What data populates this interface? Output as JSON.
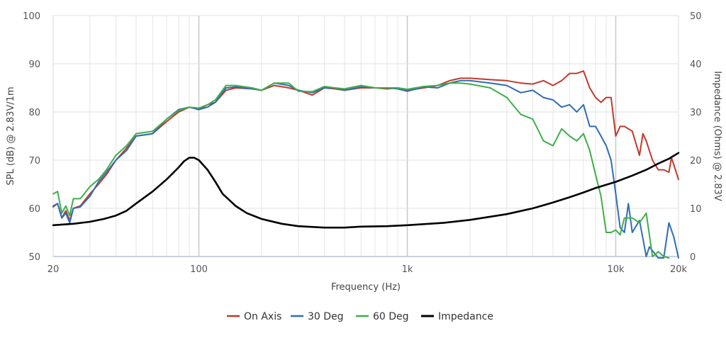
{
  "chart_data": {
    "type": "line",
    "title": "",
    "xlabel": "Frequency (Hz)",
    "ylabel": "SPL (dB) @ 2.83V/1m",
    "y2label": "Impedance (Ohms) @ 2.83V",
    "x_scale": "log",
    "xlim": [
      20,
      20000
    ],
    "ylim": [
      50,
      100
    ],
    "y2lim": [
      0,
      50
    ],
    "x_ticks": [
      {
        "value": 20,
        "label": "20"
      },
      {
        "value": 100,
        "label": "100"
      },
      {
        "value": 1000,
        "label": "1k"
      },
      {
        "value": 10000,
        "label": "10k"
      },
      {
        "value": 20000,
        "label": "20k"
      }
    ],
    "y_ticks": [
      {
        "value": 50,
        "label": "50"
      },
      {
        "value": 60,
        "label": "60"
      },
      {
        "value": 70,
        "label": "70"
      },
      {
        "value": 80,
        "label": "80"
      },
      {
        "value": 90,
        "label": "90"
      },
      {
        "value": 100,
        "label": "100"
      }
    ],
    "y2_ticks": [
      {
        "value": 0,
        "label": "0"
      },
      {
        "value": 10,
        "label": "10"
      },
      {
        "value": 20,
        "label": "20"
      },
      {
        "value": 30,
        "label": "30"
      },
      {
        "value": 40,
        "label": "40"
      },
      {
        "value": 50,
        "label": "50"
      }
    ],
    "grid": true,
    "legend_position": "bottom",
    "series": [
      {
        "name": "On Axis",
        "color": "#c0392b",
        "axis": "left",
        "points": [
          [
            20,
            60.3
          ],
          [
            21,
            61
          ],
          [
            22,
            58
          ],
          [
            23,
            59.5
          ],
          [
            24,
            57.5
          ],
          [
            25,
            60
          ],
          [
            27,
            60.5
          ],
          [
            30,
            63
          ],
          [
            33,
            65
          ],
          [
            36,
            67
          ],
          [
            40,
            70
          ],
          [
            45,
            72.5
          ],
          [
            50,
            75
          ],
          [
            60,
            75.5
          ],
          [
            70,
            78
          ],
          [
            80,
            80
          ],
          [
            90,
            81
          ],
          [
            100,
            80.5
          ],
          [
            110,
            81.5
          ],
          [
            120,
            82
          ],
          [
            135,
            84.5
          ],
          [
            150,
            85
          ],
          [
            180,
            84.8
          ],
          [
            200,
            84.5
          ],
          [
            230,
            85.5
          ],
          [
            270,
            85
          ],
          [
            300,
            84.5
          ],
          [
            350,
            83.5
          ],
          [
            400,
            85
          ],
          [
            450,
            84.8
          ],
          [
            500,
            84.5
          ],
          [
            600,
            85
          ],
          [
            700,
            85
          ],
          [
            800,
            84.8
          ],
          [
            900,
            85
          ],
          [
            1000,
            84.5
          ],
          [
            1200,
            85
          ],
          [
            1400,
            85.5
          ],
          [
            1600,
            86.5
          ],
          [
            1800,
            87
          ],
          [
            2000,
            87
          ],
          [
            2500,
            86.7
          ],
          [
            3000,
            86.5
          ],
          [
            3500,
            86
          ],
          [
            4000,
            85.8
          ],
          [
            4500,
            86.5
          ],
          [
            5000,
            85.5
          ],
          [
            5500,
            86.5
          ],
          [
            6000,
            88
          ],
          [
            6500,
            88
          ],
          [
            7000,
            88.5
          ],
          [
            7500,
            85
          ],
          [
            8000,
            83
          ],
          [
            8500,
            82
          ],
          [
            9000,
            83
          ],
          [
            9500,
            83
          ],
          [
            10000,
            75
          ],
          [
            10500,
            77
          ],
          [
            11000,
            77
          ],
          [
            12000,
            76
          ],
          [
            13000,
            71
          ],
          [
            13500,
            75.5
          ],
          [
            14000,
            74
          ],
          [
            15000,
            70
          ],
          [
            16000,
            68
          ],
          [
            17000,
            68
          ],
          [
            18000,
            67.5
          ],
          [
            18500,
            70.5
          ],
          [
            19000,
            69
          ],
          [
            20000,
            66
          ]
        ]
      },
      {
        "name": "30 Deg",
        "color": "#2e6db4",
        "axis": "left",
        "points": [
          [
            20,
            60.5
          ],
          [
            21,
            61
          ],
          [
            22,
            58
          ],
          [
            23,
            59
          ],
          [
            24,
            57
          ],
          [
            25,
            60
          ],
          [
            27,
            60.3
          ],
          [
            30,
            62.5
          ],
          [
            33,
            65.5
          ],
          [
            36,
            67.5
          ],
          [
            40,
            70
          ],
          [
            45,
            72
          ],
          [
            50,
            75
          ],
          [
            60,
            75.5
          ],
          [
            70,
            78.5
          ],
          [
            80,
            80.5
          ],
          [
            90,
            81
          ],
          [
            100,
            80.5
          ],
          [
            110,
            81
          ],
          [
            120,
            82
          ],
          [
            135,
            85
          ],
          [
            150,
            85.2
          ],
          [
            180,
            84.8
          ],
          [
            200,
            84.5
          ],
          [
            230,
            86
          ],
          [
            270,
            85.5
          ],
          [
            300,
            84.5
          ],
          [
            350,
            84
          ],
          [
            400,
            85
          ],
          [
            450,
            85
          ],
          [
            500,
            84.5
          ],
          [
            600,
            85.2
          ],
          [
            700,
            85
          ],
          [
            800,
            85
          ],
          [
            900,
            84.8
          ],
          [
            1000,
            84.3
          ],
          [
            1200,
            85.2
          ],
          [
            1400,
            85
          ],
          [
            1600,
            86
          ],
          [
            1800,
            86.5
          ],
          [
            2000,
            86.5
          ],
          [
            2500,
            86
          ],
          [
            3000,
            85.5
          ],
          [
            3500,
            84
          ],
          [
            4000,
            84.5
          ],
          [
            4500,
            83
          ],
          [
            5000,
            82.5
          ],
          [
            5500,
            81
          ],
          [
            6000,
            81.5
          ],
          [
            6500,
            80
          ],
          [
            7000,
            81.5
          ],
          [
            7500,
            77
          ],
          [
            8000,
            77
          ],
          [
            8500,
            75
          ],
          [
            9000,
            73
          ],
          [
            9500,
            70
          ],
          [
            10000,
            63
          ],
          [
            10500,
            56
          ],
          [
            11000,
            55
          ],
          [
            11500,
            61
          ],
          [
            12000,
            55
          ],
          [
            13000,
            57.5
          ],
          [
            14000,
            50
          ],
          [
            14500,
            52
          ],
          [
            16000,
            48
          ],
          [
            17000,
            49
          ],
          [
            18000,
            57
          ],
          [
            19000,
            54
          ],
          [
            20000,
            47
          ]
        ]
      },
      {
        "name": "60 Deg",
        "color": "#3fae49",
        "axis": "left",
        "points": [
          [
            20,
            63
          ],
          [
            21,
            63.5
          ],
          [
            22,
            59
          ],
          [
            23,
            60.5
          ],
          [
            24,
            58.5
          ],
          [
            25,
            62
          ],
          [
            27,
            62
          ],
          [
            30,
            64.5
          ],
          [
            33,
            66
          ],
          [
            36,
            68
          ],
          [
            40,
            71
          ],
          [
            45,
            73
          ],
          [
            50,
            75.5
          ],
          [
            60,
            76
          ],
          [
            70,
            78.5
          ],
          [
            80,
            80.3
          ],
          [
            90,
            81
          ],
          [
            100,
            80.8
          ],
          [
            110,
            81.5
          ],
          [
            120,
            82.5
          ],
          [
            135,
            85.5
          ],
          [
            150,
            85.5
          ],
          [
            180,
            85
          ],
          [
            200,
            84.5
          ],
          [
            230,
            86
          ],
          [
            270,
            86
          ],
          [
            300,
            84.3
          ],
          [
            350,
            84.2
          ],
          [
            400,
            85.3
          ],
          [
            450,
            85
          ],
          [
            500,
            84.8
          ],
          [
            600,
            85.5
          ],
          [
            700,
            85
          ],
          [
            800,
            85
          ],
          [
            900,
            85
          ],
          [
            1000,
            84.7
          ],
          [
            1200,
            85.3
          ],
          [
            1400,
            85.5
          ],
          [
            1600,
            86
          ],
          [
            1800,
            86
          ],
          [
            2000,
            85.8
          ],
          [
            2500,
            85
          ],
          [
            3000,
            83
          ],
          [
            3500,
            79.5
          ],
          [
            4000,
            78.5
          ],
          [
            4500,
            74
          ],
          [
            5000,
            73
          ],
          [
            5500,
            76.5
          ],
          [
            6000,
            75
          ],
          [
            6500,
            74
          ],
          [
            7000,
            75.5
          ],
          [
            7500,
            72
          ],
          [
            8000,
            67
          ],
          [
            8500,
            62.5
          ],
          [
            9000,
            55
          ],
          [
            9500,
            55
          ],
          [
            10000,
            55.5
          ],
          [
            10500,
            54.5
          ],
          [
            11000,
            58
          ],
          [
            12000,
            58
          ],
          [
            13000,
            57
          ],
          [
            14000,
            59
          ],
          [
            15000,
            50
          ],
          [
            16000,
            51
          ],
          [
            17000,
            50
          ],
          [
            18000,
            48
          ]
        ]
      },
      {
        "name": "Impedance",
        "color": "#000000",
        "axis": "right",
        "points": [
          [
            20,
            6.5
          ],
          [
            25,
            6.8
          ],
          [
            30,
            7.2
          ],
          [
            35,
            7.8
          ],
          [
            40,
            8.5
          ],
          [
            45,
            9.5
          ],
          [
            50,
            11
          ],
          [
            60,
            13.5
          ],
          [
            70,
            16
          ],
          [
            80,
            18.5
          ],
          [
            85,
            19.8
          ],
          [
            90,
            20.5
          ],
          [
            95,
            20.5
          ],
          [
            100,
            20
          ],
          [
            110,
            18
          ],
          [
            120,
            15.5
          ],
          [
            130,
            13
          ],
          [
            150,
            10.5
          ],
          [
            170,
            9
          ],
          [
            200,
            7.8
          ],
          [
            250,
            6.8
          ],
          [
            300,
            6.3
          ],
          [
            400,
            6
          ],
          [
            500,
            6
          ],
          [
            600,
            6.2
          ],
          [
            800,
            6.3
          ],
          [
            1000,
            6.5
          ],
          [
            1500,
            7
          ],
          [
            2000,
            7.6
          ],
          [
            3000,
            8.8
          ],
          [
            4000,
            10
          ],
          [
            5000,
            11.2
          ],
          [
            6000,
            12.3
          ],
          [
            7000,
            13.3
          ],
          [
            8000,
            14.2
          ],
          [
            10000,
            15.5
          ],
          [
            12000,
            16.8
          ],
          [
            14000,
            18
          ],
          [
            16000,
            19.3
          ],
          [
            18000,
            20.3
          ],
          [
            20000,
            21.5
          ]
        ]
      }
    ]
  }
}
